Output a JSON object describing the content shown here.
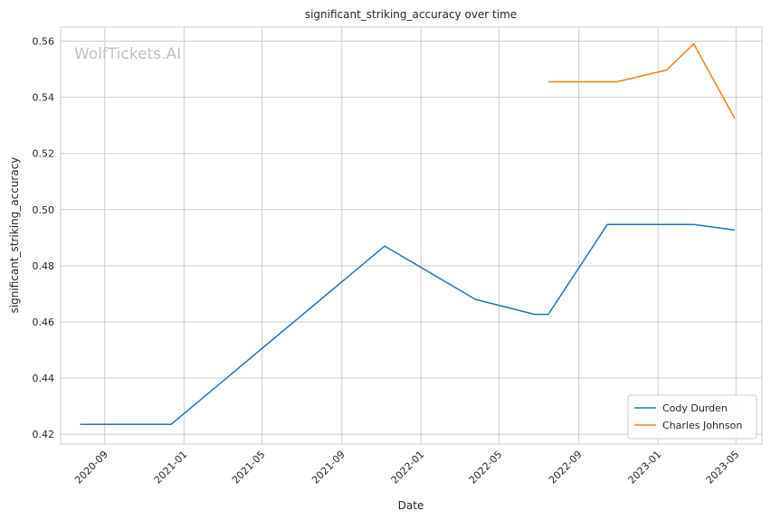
{
  "chart_data": {
    "type": "line",
    "title": "significant_striking_accuracy over time",
    "xlabel": "Date",
    "ylabel": "significant_striking_accuracy",
    "watermark": "WolfTickets.AI",
    "x_ticks": [
      "2020-09",
      "2021-01",
      "2021-05",
      "2021-09",
      "2022-01",
      "2022-05",
      "2022-09",
      "2023-01",
      "2023-05"
    ],
    "y_ticks": [
      "0.42",
      "0.44",
      "0.46",
      "0.48",
      "0.50",
      "0.52",
      "0.54",
      "0.56"
    ],
    "ylim": [
      0.4165,
      0.565
    ],
    "xlim": [
      "2020-06-25",
      "2023-06-10"
    ],
    "grid": true,
    "legend_position": "lower-right",
    "series": [
      {
        "name": "Cody Durden",
        "color": "#1f77b4",
        "points": [
          {
            "x": "2020-07-25",
            "y": 0.4235
          },
          {
            "x": "2020-12-12",
            "y": 0.4235
          },
          {
            "x": "2021-11-06",
            "y": 0.487
          },
          {
            "x": "2022-03-26",
            "y": 0.468
          },
          {
            "x": "2022-06-25",
            "y": 0.4627
          },
          {
            "x": "2022-07-16",
            "y": 0.4627
          },
          {
            "x": "2022-10-15",
            "y": 0.4947
          },
          {
            "x": "2023-02-25",
            "y": 0.4947
          },
          {
            "x": "2023-04-29",
            "y": 0.4927
          }
        ]
      },
      {
        "name": "Charles Johnson",
        "color": "#ff7f0e",
        "points": [
          {
            "x": "2022-07-16",
            "y": 0.5455
          },
          {
            "x": "2022-10-29",
            "y": 0.5455
          },
          {
            "x": "2023-01-14",
            "y": 0.5497
          },
          {
            "x": "2023-02-25",
            "y": 0.559
          },
          {
            "x": "2023-04-29",
            "y": 0.5325
          }
        ]
      }
    ]
  }
}
